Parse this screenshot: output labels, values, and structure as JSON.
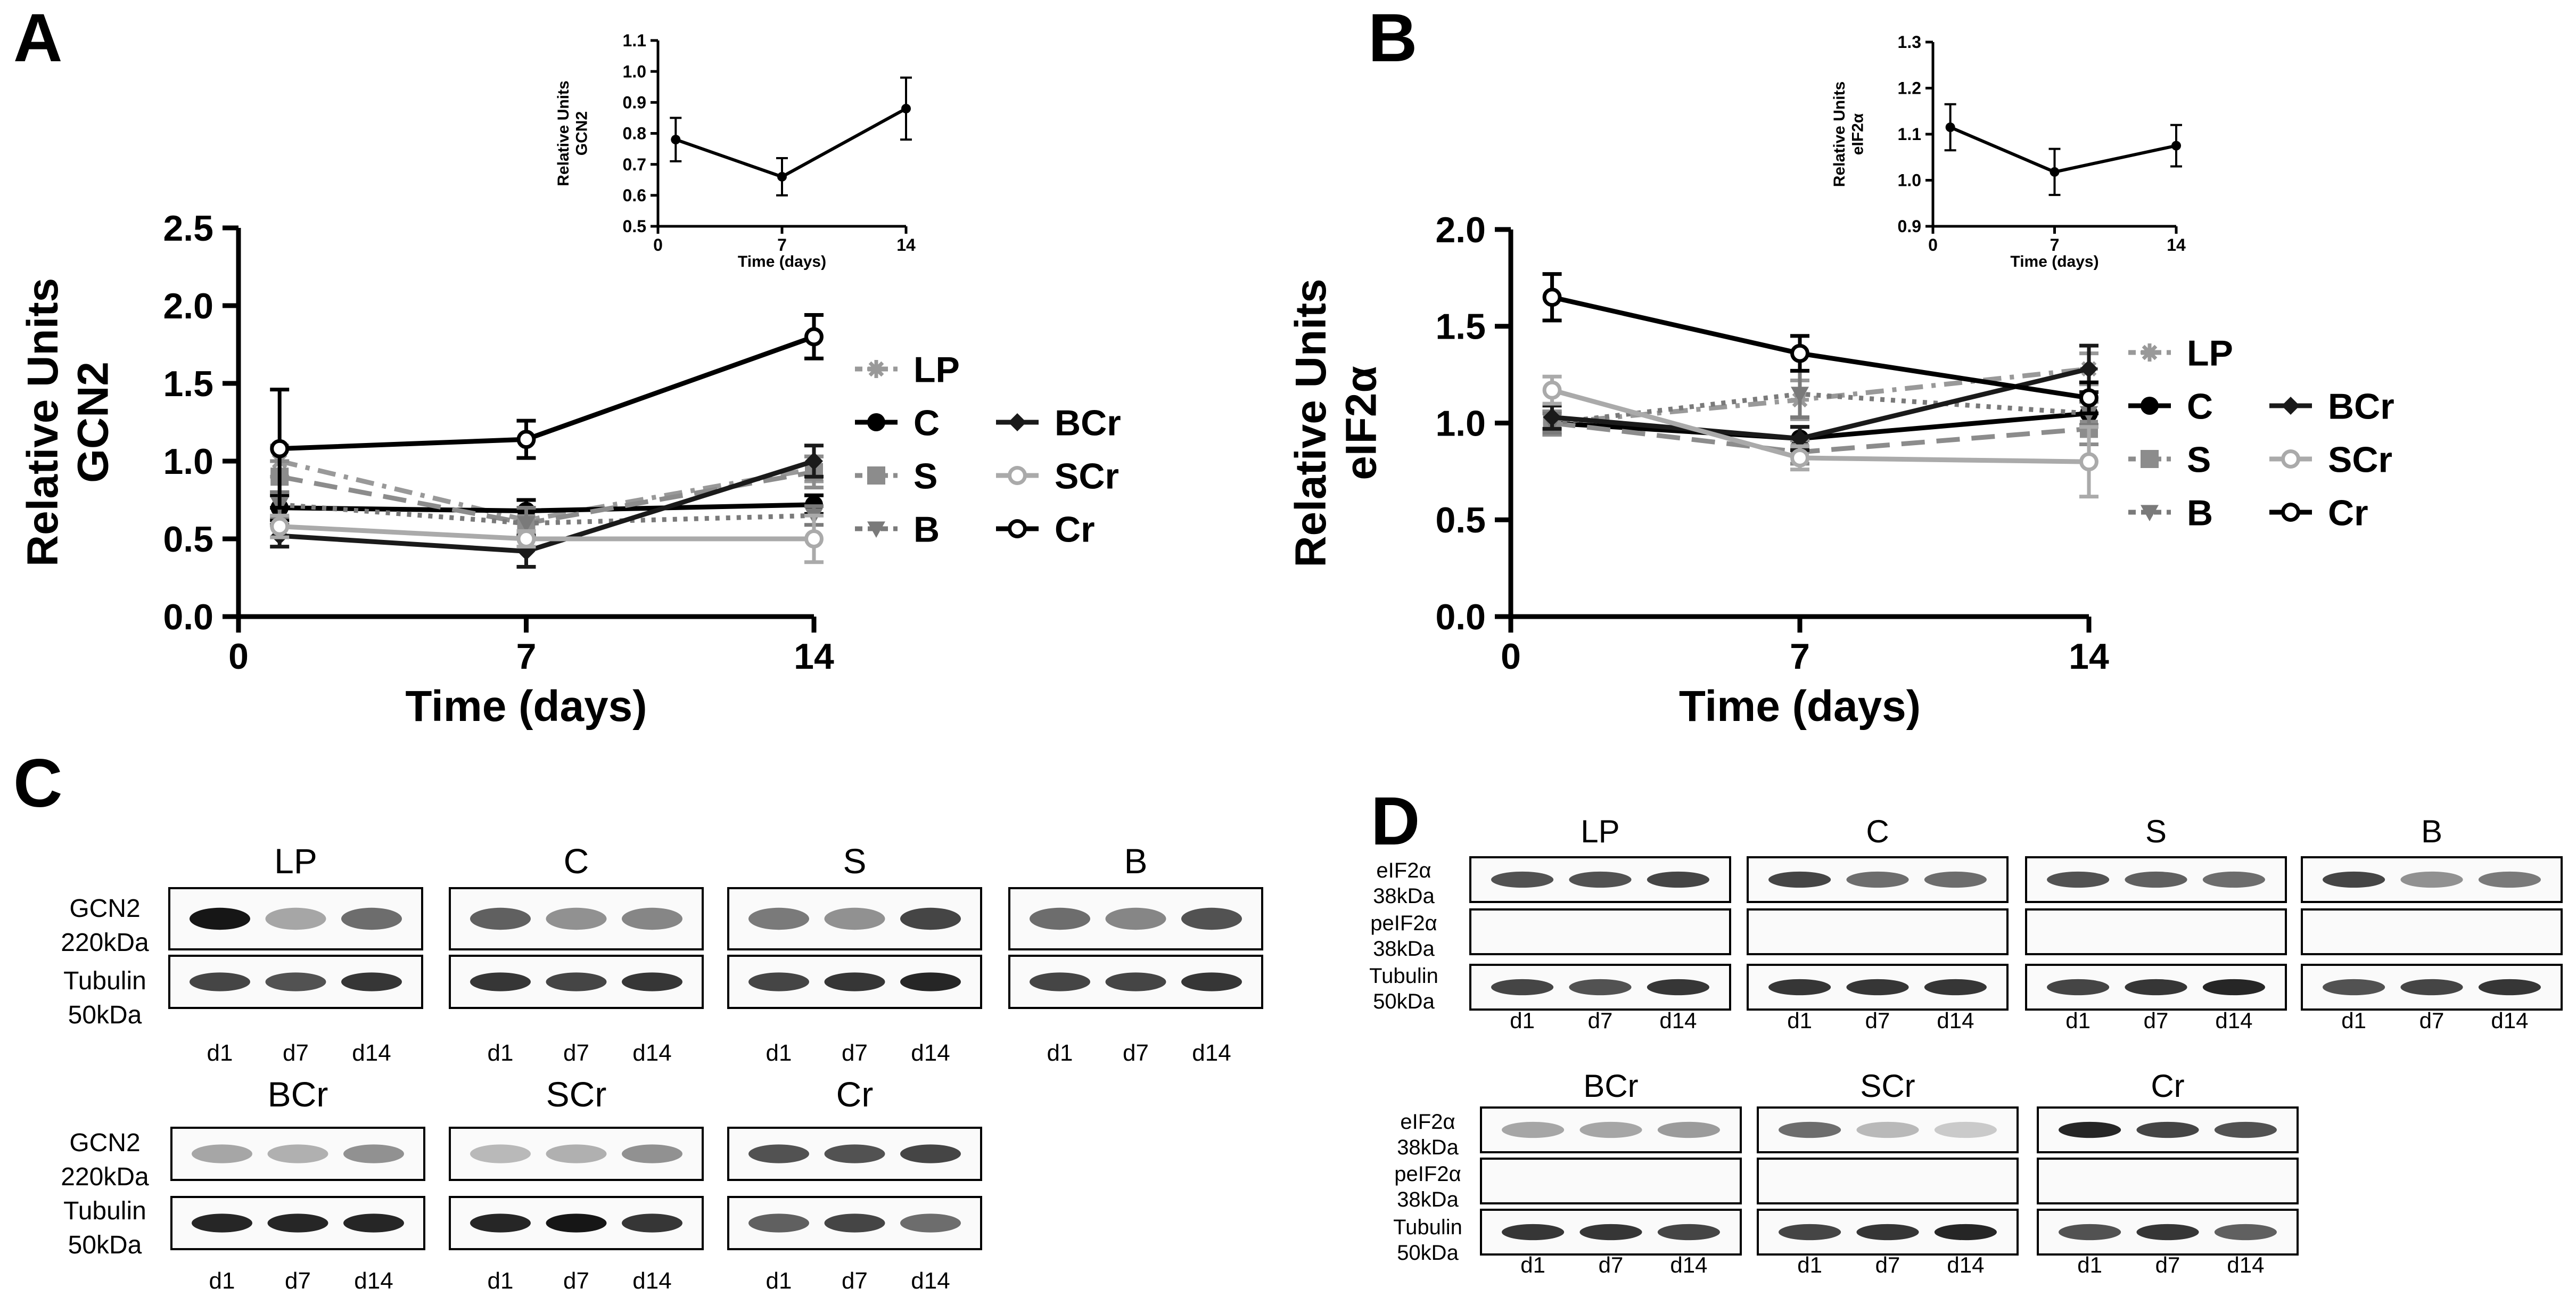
{
  "figure": {
    "panels": {
      "A": "A",
      "B": "B",
      "C": "C",
      "D": "D"
    },
    "series_labels": [
      "LP",
      "C",
      "S",
      "B",
      "BCr",
      "SCr",
      "Cr"
    ],
    "colors": {
      "LP": "#999999",
      "C": "#000000",
      "S": "#8c8c8c",
      "B": "#7a7a7a",
      "BCr": "#1a1a1a",
      "SCr": "#aaaaaa",
      "Cr": "#000000"
    }
  },
  "chart_data": [
    {
      "id": "A-main",
      "type": "line",
      "xlabel": "Time (days)",
      "ylabel_lines": [
        "Relative Units",
        "GCN2"
      ],
      "x": [
        1,
        7,
        14
      ],
      "xticks": [
        0,
        7,
        14
      ],
      "xlim": [
        0,
        14
      ],
      "ylim": [
        0,
        2.5
      ],
      "yticks": [
        0.0,
        0.5,
        1.0,
        1.5,
        2.0,
        2.5
      ],
      "ytick_labels": [
        "0.0",
        "0.5",
        "1.0",
        "1.5",
        "2.0",
        "2.5"
      ],
      "legend": {
        "col1": [
          "LP",
          "C",
          "S",
          "B"
        ],
        "col2": [
          "",
          "BCr",
          "SCr",
          "Cr"
        ]
      },
      "series": [
        {
          "name": "LP",
          "values": [
            1.0,
            0.62,
            0.95
          ],
          "err": [
            0.1,
            0.08,
            0.08
          ]
        },
        {
          "name": "C",
          "values": [
            0.7,
            0.68,
            0.72
          ],
          "err": [
            0.08,
            0.07,
            0.06
          ]
        },
        {
          "name": "S",
          "values": [
            0.9,
            0.6,
            0.93
          ],
          "err": [
            0.1,
            0.1,
            0.1
          ]
        },
        {
          "name": "B",
          "values": [
            0.72,
            0.6,
            0.65
          ],
          "err": [
            0.08,
            0.1,
            0.06
          ]
        },
        {
          "name": "BCr",
          "values": [
            0.52,
            0.42,
            1.0
          ],
          "err": [
            0.07,
            0.1,
            0.1
          ]
        },
        {
          "name": "SCr",
          "values": [
            0.58,
            0.5,
            0.5
          ],
          "err": [
            0.07,
            0.05,
            0.15
          ]
        },
        {
          "name": "Cr",
          "values": [
            1.08,
            1.14,
            1.8
          ],
          "err": [
            0.38,
            0.12,
            0.14
          ]
        }
      ]
    },
    {
      "id": "A-inset",
      "type": "line",
      "xlabel": "Time (days)",
      "ylabel_lines": [
        "Relative Units",
        "GCN2"
      ],
      "x": [
        1,
        7,
        14
      ],
      "xticks": [
        0,
        7,
        14
      ],
      "xlim": [
        0,
        14
      ],
      "ylim": [
        0.5,
        1.1
      ],
      "yticks": [
        0.5,
        0.6,
        0.7,
        0.8,
        0.9,
        1.0,
        1.1
      ],
      "ytick_labels": [
        "0.5",
        "0.6",
        "0.7",
        "0.8",
        "0.9",
        "1.0",
        "1.1"
      ],
      "series": [
        {
          "name": "mean",
          "values": [
            0.78,
            0.66,
            0.88
          ],
          "err": [
            0.07,
            0.06,
            0.1
          ]
        }
      ]
    },
    {
      "id": "B-main",
      "type": "line",
      "xlabel": "Time (days)",
      "ylabel_lines": [
        "Relative Units",
        "eIF2α"
      ],
      "x": [
        1,
        7,
        14
      ],
      "xticks": [
        0,
        7,
        14
      ],
      "xlim": [
        0,
        14
      ],
      "ylim": [
        0,
        2.0
      ],
      "yticks": [
        0.0,
        0.5,
        1.0,
        1.5,
        2.0
      ],
      "ytick_labels": [
        "0.0",
        "0.5",
        "1.0",
        "1.5",
        "2.0"
      ],
      "legend": {
        "col1": [
          "LP",
          "C",
          "S",
          "B"
        ],
        "col2": [
          "",
          "BCr",
          "SCr",
          "Cr"
        ]
      },
      "series": [
        {
          "name": "LP",
          "values": [
            1.0,
            1.12,
            1.28
          ],
          "err": [
            0.05,
            0.1,
            0.08
          ]
        },
        {
          "name": "C",
          "values": [
            1.0,
            0.92,
            1.05
          ],
          "err": [
            0.06,
            0.06,
            0.06
          ]
        },
        {
          "name": "S",
          "values": [
            1.0,
            0.85,
            0.97
          ],
          "err": [
            0.06,
            0.06,
            0.08
          ]
        },
        {
          "name": "B",
          "values": [
            1.0,
            1.15,
            1.05
          ],
          "err": [
            0.05,
            0.12,
            0.06
          ]
        },
        {
          "name": "BCr",
          "values": [
            1.03,
            0.92,
            1.28
          ],
          "err": [
            0.06,
            0.06,
            0.12
          ]
        },
        {
          "name": "SCr",
          "values": [
            1.17,
            0.82,
            0.8
          ],
          "err": [
            0.07,
            0.06,
            0.18
          ]
        },
        {
          "name": "Cr",
          "values": [
            1.65,
            1.36,
            1.13
          ],
          "err": [
            0.12,
            0.09,
            0.08
          ]
        }
      ]
    },
    {
      "id": "B-inset",
      "type": "line",
      "xlabel": "Time (days)",
      "ylabel_lines": [
        "Relative Units",
        "eIF2α"
      ],
      "x": [
        1,
        7,
        14
      ],
      "xticks": [
        0,
        7,
        14
      ],
      "xlim": [
        0,
        14
      ],
      "ylim": [
        0.9,
        1.3
      ],
      "yticks": [
        0.9,
        1.0,
        1.1,
        1.2,
        1.3
      ],
      "ytick_labels": [
        "0.9",
        "1.0",
        "1.1",
        "1.2",
        "1.3"
      ],
      "series": [
        {
          "name": "mean",
          "values": [
            1.115,
            1.018,
            1.075
          ],
          "err": [
            0.05,
            0.05,
            0.045
          ]
        }
      ]
    }
  ],
  "blots": {
    "C": {
      "row_labels": {
        "gcn2": [
          "GCN2",
          "220kDa"
        ],
        "tubulin": [
          "Tubulin",
          "50kDa"
        ]
      },
      "lane_labels": [
        "d1",
        "d7",
        "d14"
      ],
      "groups": [
        {
          "name": "LP",
          "gcn2": [
            1.0,
            0.45,
            0.7
          ],
          "tubulin": [
            0.85,
            0.8,
            0.9
          ]
        },
        {
          "name": "C",
          "gcn2": [
            0.75,
            0.55,
            0.6
          ],
          "tubulin": [
            0.9,
            0.85,
            0.9
          ]
        },
        {
          "name": "S",
          "gcn2": [
            0.65,
            0.55,
            0.85
          ],
          "tubulin": [
            0.85,
            0.9,
            0.95
          ]
        },
        {
          "name": "B",
          "gcn2": [
            0.7,
            0.6,
            0.8
          ],
          "tubulin": [
            0.85,
            0.85,
            0.9
          ]
        },
        {
          "name": "BCr",
          "gcn2": [
            0.45,
            0.4,
            0.55
          ],
          "tubulin": [
            0.95,
            0.95,
            0.95
          ]
        },
        {
          "name": "SCr",
          "gcn2": [
            0.35,
            0.4,
            0.55
          ],
          "tubulin": [
            0.95,
            1.0,
            0.9
          ]
        },
        {
          "name": "Cr",
          "gcn2": [
            0.8,
            0.8,
            0.85
          ],
          "tubulin": [
            0.75,
            0.85,
            0.7
          ]
        }
      ]
    },
    "D": {
      "row_labels": {
        "eif2a": [
          "eIF2α",
          "38kDa"
        ],
        "peif2a": [
          "peIF2α",
          "38kDa"
        ],
        "tubulin": [
          "Tubulin",
          "50kDa"
        ]
      },
      "lane_labels": [
        "d1",
        "d7",
        "d14"
      ],
      "groups": [
        {
          "name": "LP",
          "eif2a": [
            0.8,
            0.8,
            0.85
          ],
          "tubulin": [
            0.85,
            0.8,
            0.9
          ]
        },
        {
          "name": "C",
          "eif2a": [
            0.85,
            0.7,
            0.7
          ],
          "tubulin": [
            0.9,
            0.9,
            0.9
          ]
        },
        {
          "name": "S",
          "eif2a": [
            0.8,
            0.75,
            0.7
          ],
          "tubulin": [
            0.85,
            0.9,
            0.95
          ]
        },
        {
          "name": "B",
          "eif2a": [
            0.85,
            0.55,
            0.65
          ],
          "tubulin": [
            0.8,
            0.85,
            0.9
          ]
        },
        {
          "name": "BCr",
          "eif2a": [
            0.45,
            0.45,
            0.5
          ],
          "tubulin": [
            0.9,
            0.9,
            0.85
          ]
        },
        {
          "name": "SCr",
          "eif2a": [
            0.7,
            0.35,
            0.25
          ],
          "tubulin": [
            0.85,
            0.9,
            0.95
          ]
        },
        {
          "name": "Cr",
          "eif2a": [
            0.95,
            0.85,
            0.8
          ],
          "tubulin": [
            0.8,
            0.9,
            0.75
          ]
        }
      ]
    }
  }
}
